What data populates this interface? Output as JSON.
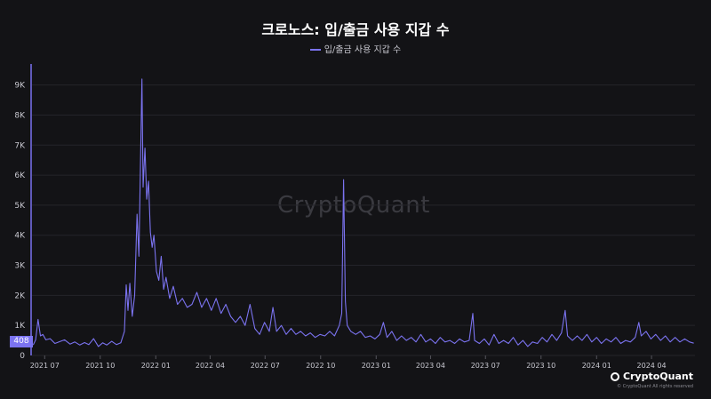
{
  "chart_data": {
    "type": "line",
    "title": "크로노스: 입/출금 사용 지갑 수",
    "legend": {
      "placement": "top-center",
      "entries": [
        "입/출금 사용 지갑 수"
      ]
    },
    "series": [
      {
        "name": "입/출금 사용 지갑 수",
        "color": "#7b73f0",
        "points": [
          [
            "2021-06-12",
            350
          ],
          [
            "2021-06-16",
            520
          ],
          [
            "2021-06-20",
            1200
          ],
          [
            "2021-06-24",
            650
          ],
          [
            "2021-06-28",
            700
          ],
          [
            "2021-07-03",
            520
          ],
          [
            "2021-07-10",
            560
          ],
          [
            "2021-07-18",
            400
          ],
          [
            "2021-07-26",
            460
          ],
          [
            "2021-08-03",
            520
          ],
          [
            "2021-08-12",
            380
          ],
          [
            "2021-08-20",
            450
          ],
          [
            "2021-08-28",
            350
          ],
          [
            "2021-09-05",
            430
          ],
          [
            "2021-09-12",
            360
          ],
          [
            "2021-09-20",
            560
          ],
          [
            "2021-09-28",
            300
          ],
          [
            "2021-10-05",
            420
          ],
          [
            "2021-10-12",
            350
          ],
          [
            "2021-10-20",
            470
          ],
          [
            "2021-10-28",
            360
          ],
          [
            "2021-11-04",
            420
          ],
          [
            "2021-11-10",
            800
          ],
          [
            "2021-11-13",
            2350
          ],
          [
            "2021-11-16",
            1500
          ],
          [
            "2021-11-19",
            2400
          ],
          [
            "2021-11-23",
            1300
          ],
          [
            "2021-11-27",
            2000
          ],
          [
            "2021-12-01",
            4700
          ],
          [
            "2021-12-04",
            3300
          ],
          [
            "2021-12-07",
            6800
          ],
          [
            "2021-12-09",
            9200
          ],
          [
            "2021-12-11",
            5600
          ],
          [
            "2021-12-14",
            6900
          ],
          [
            "2021-12-17",
            5200
          ],
          [
            "2021-12-20",
            5800
          ],
          [
            "2021-12-23",
            4100
          ],
          [
            "2021-12-26",
            3600
          ],
          [
            "2021-12-29",
            4000
          ],
          [
            "2022-01-02",
            2800
          ],
          [
            "2022-01-06",
            2500
          ],
          [
            "2022-01-10",
            3300
          ],
          [
            "2022-01-14",
            2200
          ],
          [
            "2022-01-18",
            2600
          ],
          [
            "2022-01-24",
            1900
          ],
          [
            "2022-01-30",
            2300
          ],
          [
            "2022-02-06",
            1700
          ],
          [
            "2022-02-14",
            1900
          ],
          [
            "2022-02-22",
            1600
          ],
          [
            "2022-03-02",
            1700
          ],
          [
            "2022-03-10",
            2100
          ],
          [
            "2022-03-18",
            1600
          ],
          [
            "2022-03-26",
            1900
          ],
          [
            "2022-04-03",
            1500
          ],
          [
            "2022-04-11",
            1900
          ],
          [
            "2022-04-19",
            1400
          ],
          [
            "2022-04-27",
            1700
          ],
          [
            "2022-05-05",
            1300
          ],
          [
            "2022-05-13",
            1100
          ],
          [
            "2022-05-21",
            1300
          ],
          [
            "2022-05-29",
            1000
          ],
          [
            "2022-06-06",
            1700
          ],
          [
            "2022-06-14",
            900
          ],
          [
            "2022-06-22",
            700
          ],
          [
            "2022-06-30",
            1100
          ],
          [
            "2022-07-08",
            800
          ],
          [
            "2022-07-14",
            1600
          ],
          [
            "2022-07-20",
            800
          ],
          [
            "2022-07-28",
            1000
          ],
          [
            "2022-08-05",
            700
          ],
          [
            "2022-08-13",
            900
          ],
          [
            "2022-08-21",
            700
          ],
          [
            "2022-08-29",
            800
          ],
          [
            "2022-09-06",
            650
          ],
          [
            "2022-09-14",
            750
          ],
          [
            "2022-09-22",
            600
          ],
          [
            "2022-09-30",
            700
          ],
          [
            "2022-10-08",
            650
          ],
          [
            "2022-10-16",
            800
          ],
          [
            "2022-10-24",
            650
          ],
          [
            "2022-11-01",
            1000
          ],
          [
            "2022-11-05",
            1400
          ],
          [
            "2022-11-08",
            5850
          ],
          [
            "2022-11-11",
            1800
          ],
          [
            "2022-11-14",
            1000
          ],
          [
            "2022-11-20",
            800
          ],
          [
            "2022-11-28",
            700
          ],
          [
            "2022-12-06",
            800
          ],
          [
            "2022-12-14",
            600
          ],
          [
            "2022-12-22",
            650
          ],
          [
            "2022-12-30",
            550
          ],
          [
            "2023-01-07",
            700
          ],
          [
            "2023-01-13",
            1100
          ],
          [
            "2023-01-19",
            600
          ],
          [
            "2023-01-27",
            800
          ],
          [
            "2023-02-04",
            500
          ],
          [
            "2023-02-12",
            650
          ],
          [
            "2023-02-20",
            500
          ],
          [
            "2023-02-28",
            600
          ],
          [
            "2023-03-08",
            450
          ],
          [
            "2023-03-16",
            700
          ],
          [
            "2023-03-24",
            450
          ],
          [
            "2023-04-01",
            550
          ],
          [
            "2023-04-09",
            400
          ],
          [
            "2023-04-17",
            600
          ],
          [
            "2023-04-25",
            450
          ],
          [
            "2023-05-03",
            500
          ],
          [
            "2023-05-11",
            400
          ],
          [
            "2023-05-19",
            550
          ],
          [
            "2023-05-27",
            450
          ],
          [
            "2023-06-04",
            500
          ],
          [
            "2023-06-10",
            1400
          ],
          [
            "2023-06-13",
            500
          ],
          [
            "2023-06-21",
            400
          ],
          [
            "2023-06-29",
            550
          ],
          [
            "2023-07-07",
            350
          ],
          [
            "2023-07-15",
            700
          ],
          [
            "2023-07-23",
            400
          ],
          [
            "2023-07-31",
            500
          ],
          [
            "2023-08-08",
            400
          ],
          [
            "2023-08-16",
            600
          ],
          [
            "2023-08-24",
            350
          ],
          [
            "2023-09-01",
            500
          ],
          [
            "2023-09-09",
            300
          ],
          [
            "2023-09-17",
            450
          ],
          [
            "2023-09-25",
            400
          ],
          [
            "2023-10-03",
            600
          ],
          [
            "2023-10-11",
            450
          ],
          [
            "2023-10-19",
            700
          ],
          [
            "2023-10-27",
            500
          ],
          [
            "2023-11-04",
            750
          ],
          [
            "2023-11-10",
            1500
          ],
          [
            "2023-11-14",
            650
          ],
          [
            "2023-11-22",
            500
          ],
          [
            "2023-11-30",
            650
          ],
          [
            "2023-12-08",
            500
          ],
          [
            "2023-12-16",
            700
          ],
          [
            "2023-12-24",
            450
          ],
          [
            "2024-01-01",
            600
          ],
          [
            "2024-01-09",
            400
          ],
          [
            "2024-01-17",
            550
          ],
          [
            "2024-01-25",
            450
          ],
          [
            "2024-02-02",
            600
          ],
          [
            "2024-02-10",
            400
          ],
          [
            "2024-02-18",
            500
          ],
          [
            "2024-02-26",
            450
          ],
          [
            "2024-03-05",
            600
          ],
          [
            "2024-03-11",
            1100
          ],
          [
            "2024-03-15",
            650
          ],
          [
            "2024-03-23",
            800
          ],
          [
            "2024-03-31",
            550
          ],
          [
            "2024-04-08",
            700
          ],
          [
            "2024-04-16",
            500
          ],
          [
            "2024-04-24",
            650
          ],
          [
            "2024-05-02",
            450
          ],
          [
            "2024-05-10",
            600
          ],
          [
            "2024-05-18",
            450
          ],
          [
            "2024-05-26",
            550
          ],
          [
            "2024-06-03",
            450
          ],
          [
            "2024-06-10",
            408
          ]
        ]
      }
    ],
    "x_axis": {
      "type": "date",
      "range": [
        "2021-06-10",
        "2024-06-12"
      ],
      "ticks": [
        {
          "value": "2021-07-01",
          "label": "2021 07"
        },
        {
          "value": "2021-10-01",
          "label": "2021 10"
        },
        {
          "value": "2022-01-01",
          "label": "2022 01"
        },
        {
          "value": "2022-04-01",
          "label": "2022 04"
        },
        {
          "value": "2022-07-01",
          "label": "2022 07"
        },
        {
          "value": "2022-10-01",
          "label": "2022 10"
        },
        {
          "value": "2023-01-01",
          "label": "2023 01"
        },
        {
          "value": "2023-04-01",
          "label": "2023 04"
        },
        {
          "value": "2023-07-01",
          "label": "2023 07"
        },
        {
          "value": "2023-10-01",
          "label": "2023 10"
        },
        {
          "value": "2024-01-01",
          "label": "2024 01"
        },
        {
          "value": "2024-04-01",
          "label": "2024 04"
        }
      ]
    },
    "y_axis": {
      "range": [
        0,
        9700
      ],
      "ticks": [
        {
          "value": 0,
          "label": "0"
        },
        {
          "value": 1000,
          "label": "1K"
        },
        {
          "value": 2000,
          "label": "2K"
        },
        {
          "value": 3000,
          "label": "3K"
        },
        {
          "value": 4000,
          "label": "4K"
        },
        {
          "value": 5000,
          "label": "5K"
        },
        {
          "value": 6000,
          "label": "6K"
        },
        {
          "value": 7000,
          "label": "7K"
        },
        {
          "value": 8000,
          "label": "8K"
        },
        {
          "value": 9000,
          "label": "9K"
        }
      ],
      "grid": true
    },
    "last_value": {
      "value": 408,
      "label": "408"
    }
  },
  "watermark": "CryptoQuant",
  "brand": {
    "name": "CryptoQuant",
    "copyright": "© CryptoQuant All rights reserved"
  }
}
